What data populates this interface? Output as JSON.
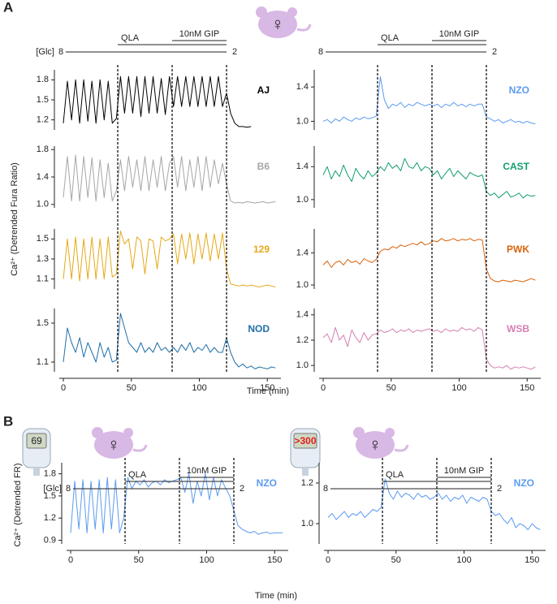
{
  "sex_symbol": "♀",
  "panels": [
    {
      "label": "A",
      "xlabel": "Time (min)",
      "ylabel": "Ca²⁺ (Detrended Fura Ratio)",
      "protocol": {
        "glc_label": "[Glc]",
        "glc_high": "8",
        "glc_low": "2",
        "qla": "QLA",
        "gip": "10nM GIP",
        "events": [
          40,
          80,
          120
        ]
      }
    },
    {
      "label": "B",
      "xlabel": "Time (min)",
      "ylabel": "Ca²⁺ (Detrended FR)",
      "protocol": {
        "glc_label": "[Glc]",
        "glc_high": "8",
        "glc_low": "2",
        "qla": "QLA",
        "gip": "10nM GIP",
        "events": [
          40,
          80,
          120
        ]
      },
      "meters": [
        {
          "reading": "69"
        },
        {
          "reading": ">300"
        }
      ]
    }
  ],
  "chart_data": [
    {
      "type": "line",
      "name": "AJ",
      "color": "#000000",
      "x": [
        0,
        3,
        6,
        9,
        12,
        15,
        18,
        21,
        24,
        27,
        30,
        33,
        36,
        39,
        42,
        45,
        48,
        51,
        54,
        57,
        60,
        63,
        66,
        69,
        72,
        75,
        78,
        81,
        84,
        87,
        90,
        93,
        96,
        99,
        102,
        105,
        108,
        111,
        114,
        117,
        120,
        123,
        126,
        129,
        132,
        135,
        138
      ],
      "values": [
        1.15,
        1.78,
        1.2,
        1.8,
        1.15,
        1.8,
        1.18,
        1.78,
        1.15,
        1.8,
        1.2,
        1.78,
        1.15,
        1.22,
        1.85,
        1.3,
        1.85,
        1.3,
        1.85,
        1.25,
        1.85,
        1.3,
        1.85,
        1.3,
        1.82,
        1.28,
        1.85,
        1.4,
        1.85,
        1.4,
        1.85,
        1.4,
        1.85,
        1.4,
        1.85,
        1.4,
        1.85,
        1.4,
        1.85,
        1.4,
        1.6,
        1.3,
        1.15,
        1.1,
        1.1,
        1.09,
        1.1
      ],
      "xlim": [
        -3,
        160
      ],
      "ylim": [
        1.05,
        1.95
      ],
      "yticks": [
        1.2,
        1.5,
        1.8
      ]
    },
    {
      "type": "line",
      "name": "B6",
      "color": "#a6a6a6",
      "x": [
        0,
        3,
        6,
        9,
        12,
        15,
        18,
        21,
        24,
        27,
        30,
        33,
        36,
        39,
        42,
        45,
        48,
        51,
        54,
        57,
        60,
        63,
        66,
        69,
        72,
        75,
        78,
        81,
        84,
        87,
        90,
        93,
        96,
        99,
        102,
        105,
        108,
        111,
        114,
        117,
        120,
        123,
        126,
        129,
        132,
        135,
        138,
        141,
        144,
        147,
        150,
        153,
        156
      ],
      "values": [
        1.1,
        1.7,
        1.05,
        1.72,
        1.05,
        1.7,
        1.1,
        1.68,
        1.05,
        1.65,
        1.1,
        1.6,
        1.05,
        1.2,
        1.65,
        1.2,
        1.7,
        1.25,
        1.65,
        1.2,
        1.7,
        1.2,
        1.65,
        1.25,
        1.7,
        1.2,
        1.6,
        1.7,
        1.25,
        1.7,
        1.2,
        1.65,
        1.25,
        1.7,
        1.2,
        1.7,
        1.25,
        1.65,
        1.3,
        1.6,
        1.3,
        1.05,
        1.02,
        1.03,
        1.02,
        1.04,
        1.03,
        1.02,
        1.03,
        1.04,
        1.02,
        1.03,
        1.04
      ],
      "xlim": [
        -3,
        160
      ],
      "ylim": [
        0.95,
        1.85
      ],
      "yticks": [
        {
          "value": 1,
          "label": "1.0"
        },
        1.4,
        1.8
      ]
    },
    {
      "type": "line",
      "name": "129",
      "color": "#e6a817",
      "x": [
        0,
        3,
        6,
        9,
        12,
        15,
        18,
        21,
        24,
        27,
        30,
        33,
        36,
        39,
        42,
        45,
        48,
        51,
        54,
        57,
        60,
        63,
        66,
        69,
        72,
        75,
        78,
        81,
        84,
        87,
        90,
        93,
        96,
        99,
        102,
        105,
        108,
        111,
        114,
        117,
        120,
        123,
        126,
        129,
        132,
        135,
        138,
        141,
        144,
        147,
        150,
        153,
        156
      ],
      "values": [
        1.1,
        1.5,
        1.1,
        1.52,
        1.08,
        1.5,
        1.1,
        1.52,
        1.1,
        1.5,
        1.1,
        1.52,
        1.12,
        1.15,
        1.58,
        1.45,
        1.5,
        1.2,
        1.52,
        1.48,
        1.15,
        1.5,
        1.48,
        1.2,
        1.52,
        1.48,
        1.5,
        1.55,
        1.25,
        1.55,
        1.3,
        1.56,
        1.25,
        1.55,
        1.3,
        1.56,
        1.28,
        1.55,
        1.3,
        1.56,
        1.2,
        1.05,
        1.04,
        1.03,
        1.04,
        1.03,
        1.04,
        1.03,
        1.02,
        1.03,
        1.04,
        1.03,
        1.02
      ],
      "xlim": [
        -3,
        160
      ],
      "ylim": [
        1.0,
        1.6
      ],
      "yticks": [
        1.1,
        1.3,
        1.5
      ]
    },
    {
      "type": "line",
      "name": "NOD",
      "color": "#1f6fa8",
      "x": [
        0,
        3,
        6,
        9,
        12,
        15,
        18,
        21,
        24,
        27,
        30,
        33,
        36,
        39,
        42,
        45,
        48,
        51,
        54,
        57,
        60,
        63,
        66,
        69,
        72,
        75,
        78,
        81,
        84,
        87,
        90,
        93,
        96,
        99,
        102,
        105,
        108,
        111,
        114,
        117,
        120,
        123,
        126,
        129,
        132,
        135,
        138,
        141,
        144,
        147,
        150,
        153,
        156
      ],
      "values": [
        1.1,
        1.45,
        1.3,
        1.2,
        1.35,
        1.15,
        1.3,
        1.2,
        1.1,
        1.3,
        1.15,
        1.25,
        1.1,
        1.12,
        1.6,
        1.45,
        1.3,
        1.25,
        1.2,
        1.3,
        1.2,
        1.25,
        1.2,
        1.3,
        1.22,
        1.25,
        1.2,
        1.25,
        1.2,
        1.28,
        1.22,
        1.3,
        1.2,
        1.25,
        1.22,
        1.28,
        1.2,
        1.25,
        1.2,
        1.2,
        1.35,
        1.2,
        1.1,
        1.05,
        1.08,
        1.04,
        1.06,
        1.03,
        1.05,
        1.04,
        1.03,
        1.05,
        1.04
      ],
      "xlim": [
        -3,
        160
      ],
      "ylim": [
        1.0,
        1.65
      ],
      "yticks": [
        1.1,
        1.5
      ],
      "xticks": [
        0,
        50,
        100,
        150
      ]
    },
    {
      "type": "line",
      "name": "NZO",
      "color": "#5b9bf0",
      "x": [
        0,
        3,
        6,
        9,
        12,
        15,
        18,
        21,
        24,
        27,
        30,
        33,
        36,
        39,
        42,
        45,
        48,
        51,
        54,
        57,
        60,
        63,
        66,
        69,
        72,
        75,
        78,
        81,
        84,
        87,
        90,
        93,
        96,
        99,
        102,
        105,
        108,
        111,
        114,
        117,
        120,
        123,
        126,
        129,
        132,
        135,
        138,
        141,
        144,
        147,
        150,
        153,
        156
      ],
      "values": [
        1.0,
        1.02,
        0.98,
        1.03,
        1.0,
        1.05,
        1.02,
        1.0,
        1.04,
        1.02,
        1.05,
        1.03,
        1.04,
        1.06,
        1.52,
        1.25,
        1.15,
        1.2,
        1.18,
        1.22,
        1.16,
        1.2,
        1.18,
        1.22,
        1.2,
        1.18,
        1.2,
        1.18,
        1.2,
        1.16,
        1.2,
        1.18,
        1.22,
        1.18,
        1.2,
        1.17,
        1.2,
        1.18,
        1.2,
        1.2,
        1.05,
        1.03,
        1.0,
        1.02,
        0.98,
        1.0,
        1.02,
        0.99,
        1.0,
        0.98,
        1.0,
        0.98,
        0.97
      ],
      "xlim": [
        -3,
        160
      ],
      "ylim": [
        0.9,
        1.6
      ],
      "yticks": [
        {
          "value": 1,
          "label": "1.0"
        },
        1.4
      ]
    },
    {
      "type": "line",
      "name": "CAST",
      "color": "#129e6e",
      "x": [
        0,
        3,
        6,
        9,
        12,
        15,
        18,
        21,
        24,
        27,
        30,
        33,
        36,
        39,
        42,
        45,
        48,
        51,
        54,
        57,
        60,
        63,
        66,
        69,
        72,
        75,
        78,
        81,
        84,
        87,
        90,
        93,
        96,
        99,
        102,
        105,
        108,
        111,
        114,
        117,
        120,
        123,
        126,
        129,
        132,
        135,
        138,
        141,
        144,
        147,
        150,
        153,
        156
      ],
      "values": [
        1.3,
        1.4,
        1.25,
        1.35,
        1.28,
        1.42,
        1.3,
        1.22,
        1.38,
        1.3,
        1.25,
        1.35,
        1.28,
        1.32,
        1.4,
        1.35,
        1.45,
        1.38,
        1.42,
        1.35,
        1.5,
        1.4,
        1.38,
        1.45,
        1.35,
        1.4,
        1.38,
        1.3,
        1.35,
        1.25,
        1.32,
        1.38,
        1.28,
        1.35,
        1.3,
        1.25,
        1.33,
        1.3,
        1.28,
        1.3,
        1.1,
        1.05,
        1.08,
        1.02,
        1.06,
        1.1,
        1.03,
        1.05,
        1.08,
        1.02,
        1.06,
        1.04,
        1.05
      ],
      "xlim": [
        -3,
        160
      ],
      "ylim": [
        0.9,
        1.65
      ],
      "yticks": [
        {
          "value": 1,
          "label": "1.0"
        },
        1.4
      ]
    },
    {
      "type": "line",
      "name": "PWK",
      "color": "#d9620b",
      "x": [
        0,
        3,
        6,
        9,
        12,
        15,
        18,
        21,
        24,
        27,
        30,
        33,
        36,
        39,
        42,
        45,
        48,
        51,
        54,
        57,
        60,
        63,
        66,
        69,
        72,
        75,
        78,
        81,
        84,
        87,
        90,
        93,
        96,
        99,
        102,
        105,
        108,
        111,
        114,
        117,
        120,
        123,
        126,
        129,
        132,
        135,
        138,
        141,
        144,
        147,
        150,
        153,
        156
      ],
      "values": [
        1.25,
        1.3,
        1.22,
        1.28,
        1.3,
        1.25,
        1.32,
        1.28,
        1.3,
        1.26,
        1.33,
        1.3,
        1.28,
        1.32,
        1.42,
        1.45,
        1.44,
        1.48,
        1.46,
        1.5,
        1.48,
        1.5,
        1.52,
        1.5,
        1.54,
        1.5,
        1.52,
        1.55,
        1.54,
        1.58,
        1.55,
        1.56,
        1.58,
        1.55,
        1.57,
        1.56,
        1.58,
        1.55,
        1.57,
        1.56,
        1.2,
        1.08,
        1.05,
        1.04,
        1.06,
        1.05,
        1.04,
        1.06,
        1.05,
        1.04,
        1.06,
        1.08,
        1.06
      ],
      "xlim": [
        -3,
        160
      ],
      "ylim": [
        0.95,
        1.7
      ],
      "yticks": [
        {
          "value": 1,
          "label": "1.0"
        },
        1.4
      ]
    },
    {
      "type": "line",
      "name": "WSB",
      "color": "#d67fb3",
      "x": [
        0,
        3,
        6,
        9,
        12,
        15,
        18,
        21,
        24,
        27,
        30,
        33,
        36,
        39,
        42,
        45,
        48,
        51,
        54,
        57,
        60,
        63,
        66,
        69,
        72,
        75,
        78,
        81,
        84,
        87,
        90,
        93,
        96,
        99,
        102,
        105,
        108,
        111,
        114,
        117,
        120,
        123,
        126,
        129,
        132,
        135,
        138,
        141,
        144,
        147,
        150,
        153,
        156
      ],
      "values": [
        1.22,
        1.25,
        1.18,
        1.3,
        1.2,
        1.24,
        1.15,
        1.28,
        1.22,
        1.18,
        1.26,
        1.2,
        1.24,
        1.25,
        1.28,
        1.26,
        1.27,
        1.29,
        1.26,
        1.28,
        1.27,
        1.29,
        1.26,
        1.28,
        1.27,
        1.28,
        1.29,
        1.27,
        1.28,
        1.26,
        1.29,
        1.27,
        1.28,
        1.27,
        1.3,
        1.28,
        1.29,
        1.27,
        1.3,
        1.28,
        1.05,
        1.0,
        0.98,
        0.99,
        0.98,
        1.0,
        0.97,
        0.99,
        0.98,
        0.99,
        0.98,
        0.97,
        0.99
      ],
      "xlim": [
        -3,
        160
      ],
      "ylim": [
        0.95,
        1.45
      ],
      "yticks": [
        {
          "value": 1,
          "label": "1.0"
        },
        1.2,
        1.4
      ],
      "xticks": [
        0,
        50,
        100,
        150
      ]
    },
    {
      "type": "line",
      "name": "NZO",
      "color": "#5b9bf0",
      "x": [
        0,
        3,
        6,
        9,
        12,
        15,
        18,
        21,
        24,
        27,
        30,
        33,
        36,
        39,
        42,
        45,
        48,
        51,
        54,
        57,
        60,
        63,
        66,
        69,
        72,
        75,
        78,
        81,
        84,
        87,
        90,
        93,
        96,
        99,
        102,
        105,
        108,
        111,
        114,
        117,
        120,
        123,
        126,
        129,
        132,
        135,
        138,
        141,
        144,
        147,
        150,
        153,
        156
      ],
      "values": [
        1.0,
        1.7,
        1.05,
        1.72,
        1.0,
        1.7,
        1.05,
        1.72,
        1.0,
        1.75,
        1.05,
        1.72,
        1.0,
        1.2,
        1.75,
        1.6,
        1.7,
        1.65,
        1.72,
        1.62,
        1.68,
        1.7,
        1.65,
        1.72,
        1.68,
        1.7,
        1.72,
        1.75,
        1.55,
        1.8,
        1.4,
        1.7,
        1.5,
        1.8,
        1.45,
        1.75,
        1.5,
        1.72,
        1.6,
        1.5,
        1.3,
        1.1,
        1.05,
        1.02,
        1.0,
        1.02,
        0.98,
        1.0,
        1.01,
        0.99,
        1.0,
        1.0,
        1.0
      ],
      "xlim": [
        -3,
        160
      ],
      "ylim": [
        0.85,
        1.95
      ],
      "yticks": [
        0.9,
        1.2,
        1.5,
        1.8
      ],
      "xticks": [
        0,
        50,
        100,
        150
      ]
    },
    {
      "type": "line",
      "name": "NZO",
      "color": "#5b9bf0",
      "x": [
        0,
        3,
        6,
        9,
        12,
        15,
        18,
        21,
        24,
        27,
        30,
        33,
        36,
        39,
        42,
        45,
        48,
        51,
        54,
        57,
        60,
        63,
        66,
        69,
        72,
        75,
        78,
        81,
        84,
        87,
        90,
        93,
        96,
        99,
        102,
        105,
        108,
        111,
        114,
        117,
        120,
        123,
        126,
        129,
        132,
        135,
        138,
        141,
        144,
        147,
        150,
        153,
        156
      ],
      "values": [
        1.03,
        1.05,
        1.02,
        1.04,
        1.06,
        1.03,
        1.05,
        1.04,
        1.06,
        1.03,
        1.05,
        1.07,
        1.06,
        1.08,
        1.22,
        1.15,
        1.12,
        1.16,
        1.13,
        1.15,
        1.14,
        1.12,
        1.15,
        1.13,
        1.14,
        1.12,
        1.13,
        1.15,
        1.12,
        1.14,
        1.11,
        1.13,
        1.12,
        1.14,
        1.1,
        1.13,
        1.12,
        1.11,
        1.13,
        1.12,
        1.06,
        1.04,
        1.05,
        1.02,
        1.0,
        1.03,
        0.98,
        1.0,
        0.99,
        0.97,
        1.0,
        0.98,
        0.97
      ],
      "xlim": [
        -3,
        160
      ],
      "ylim": [
        0.9,
        1.3
      ],
      "yticks": [
        {
          "value": 1,
          "label": "1.0"
        },
        1.2
      ],
      "xticks": [
        0,
        50,
        100,
        150
      ]
    }
  ]
}
